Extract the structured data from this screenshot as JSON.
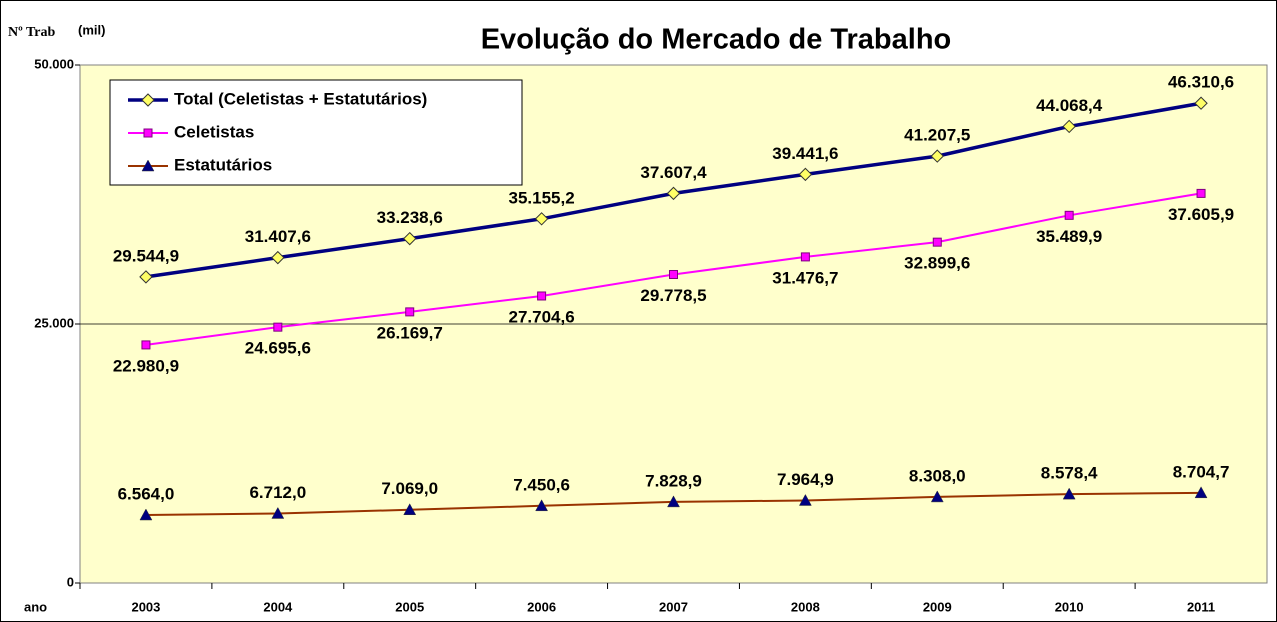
{
  "chart_data": {
    "type": "line",
    "title": "Evolução do Mercado de Trabalho",
    "y_label": "Nº Trab",
    "y_unit": "(mil)",
    "x_label": "ano",
    "categories": [
      "2003",
      "2004",
      "2005",
      "2006",
      "2007",
      "2008",
      "2009",
      "2010",
      "2011"
    ],
    "ylim": [
      0,
      50000
    ],
    "yticks": [
      0,
      {
        "value": 25000,
        "label": "25.000"
      },
      {
        "value": 50000,
        "label": "50.000"
      }
    ],
    "grid": true,
    "legend": "top-left",
    "series": [
      {
        "name": "Total (Celetistas + Estatutários)",
        "color": "#000080",
        "marker_color": "#ffff66",
        "values": [
          29544.9,
          31407.6,
          33238.6,
          35155.2,
          37607.4,
          39441.6,
          41207.5,
          44068.4,
          46310.6
        ],
        "value_labels": [
          "29.544,9",
          "31.407,6",
          "33.238,6",
          "35.155,2",
          "37.607,4",
          "39.441,6",
          "41.207,5",
          "44.068,4",
          "46.310,6"
        ]
      },
      {
        "name": "Celetistas",
        "color": "#ff00ff",
        "marker_color": "#ff00ff",
        "values": [
          22980.9,
          24695.6,
          26169.7,
          27704.6,
          29778.5,
          31476.7,
          32899.6,
          35489.9,
          37605.9
        ],
        "value_labels": [
          "22.980,9",
          "24.695,6",
          "26.169,7",
          "27.704,6",
          "29.778,5",
          "31.476,7",
          "32.899,6",
          "35.489,9",
          "37.605,9"
        ]
      },
      {
        "name": "Estatutários",
        "color": "#993300",
        "marker_color": "#000080",
        "values": [
          6564.0,
          6712.0,
          7069.0,
          7450.6,
          7828.9,
          7964.9,
          8308.0,
          8578.4,
          8704.7
        ],
        "value_labels": [
          "6.564,0",
          "6.712,0",
          "7.069,0",
          "7.450,6",
          "7.828,9",
          "7.964,9",
          "8.308,0",
          "8.578,4",
          "8.704,7"
        ]
      }
    ]
  }
}
